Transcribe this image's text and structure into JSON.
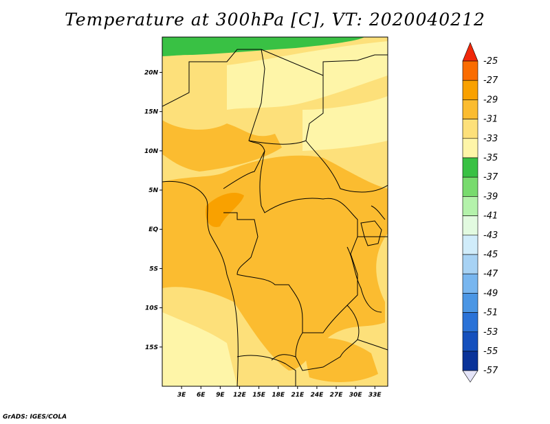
{
  "title": "Temperature at 300hPa [C], VT: 2020040212",
  "credit": "GrADS: IGES/COLA",
  "map": {
    "lat_labels": [
      "20N",
      "15N",
      "10N",
      "5N",
      "EQ",
      "5S",
      "10S",
      "15S"
    ],
    "lon_labels": [
      "3E",
      "6E",
      "9E",
      "12E",
      "15E",
      "18E",
      "21E",
      "24E",
      "27E",
      "30E",
      "33E"
    ],
    "lat_values": [
      20,
      15,
      10,
      5,
      0,
      -5,
      -10,
      -15
    ],
    "lon_values": [
      3,
      6,
      9,
      12,
      15,
      18,
      21,
      24,
      27,
      30,
      33
    ],
    "lat_range": [
      -20,
      24.5
    ],
    "lon_range": [
      0,
      35
    ]
  },
  "colorbar": {
    "labels": [
      "-25",
      "-27",
      "-29",
      "-31",
      "-33",
      "-35",
      "-37",
      "-39",
      "-41",
      "-43",
      "-45",
      "-47",
      "-49",
      "-51",
      "-53",
      "-55",
      "-57"
    ],
    "colors": [
      "#f0280a",
      "#fa6c00",
      "#f9a100",
      "#fbbc30",
      "#fde07a",
      "#fef5a8",
      "#39c144",
      "#78db6e",
      "#b4f2ab",
      "#e2fae0",
      "#d0ecfa",
      "#a7d2f4",
      "#78b6ef",
      "#4b96e4",
      "#2a72d7",
      "#1550bd",
      "#0a3399",
      "#101080",
      "#e4e4f8"
    ]
  },
  "fields": {
    "green_band": "#39c144",
    "pale": "#fef5a8",
    "light": "#fde07a",
    "mid": "#fbbc30",
    "dark": "#f9a100"
  }
}
